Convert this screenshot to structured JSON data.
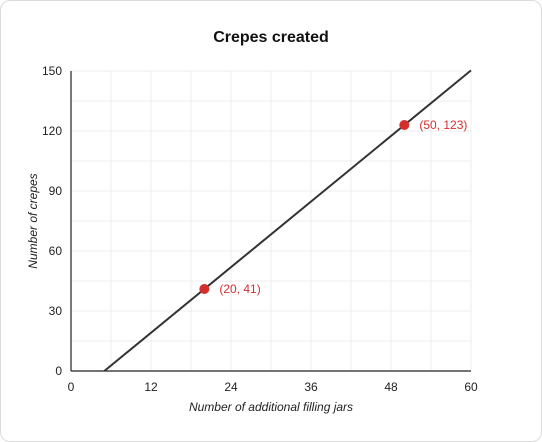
{
  "chart_data": {
    "type": "line",
    "title": "Crepes created",
    "xlabel": "Number of additional filling jars",
    "ylabel": "Number of crepes",
    "xlim": [
      0,
      60
    ],
    "ylim": [
      0,
      150
    ],
    "x_ticks": [
      0,
      12,
      24,
      36,
      48,
      60
    ],
    "y_ticks": [
      0,
      30,
      60,
      90,
      120,
      150
    ],
    "grid": true,
    "line": {
      "x": [
        5,
        60
      ],
      "y": [
        0,
        150.3
      ],
      "color": "#333333"
    },
    "points": [
      {
        "x": 20,
        "y": 41,
        "label": "(20, 41)"
      },
      {
        "x": 50,
        "y": 123,
        "label": "(50, 123)"
      }
    ],
    "point_color": "#d32f2f"
  }
}
